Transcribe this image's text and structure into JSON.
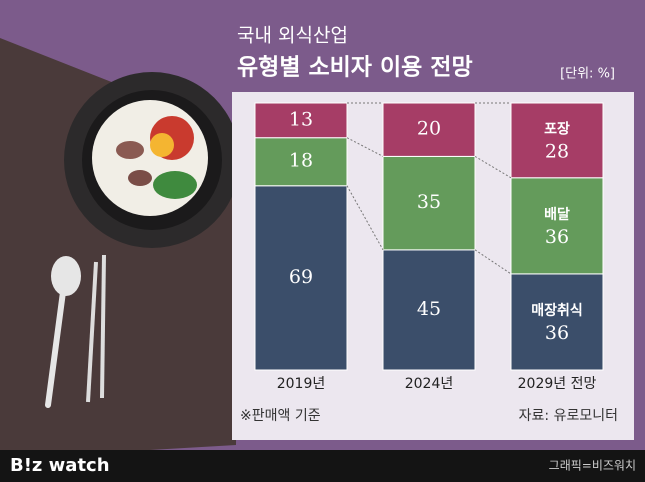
{
  "header": {
    "title": "국내 외식산업",
    "subtitle": "유형별 소비자 이용 전망",
    "unit": "[단위: %]"
  },
  "chart_data": {
    "type": "stacked-bar",
    "categories": [
      "2019년",
      "2024년",
      "2029년 전망"
    ],
    "series": [
      {
        "name": "매장취식",
        "color": "#3b4e6a",
        "values": [
          69,
          45,
          36
        ]
      },
      {
        "name": "배달",
        "color": "#649b5b",
        "values": [
          18,
          35,
          36
        ]
      },
      {
        "name": "포장",
        "color": "#a63d66",
        "values": [
          13,
          20,
          28
        ]
      }
    ],
    "ylim": [
      0,
      100
    ]
  },
  "notes": {
    "basis": "※판매액 기준",
    "source": "자료: 유로모니터"
  },
  "footer": {
    "brand": "B!z watch",
    "credit": "그래픽=비즈워치"
  }
}
